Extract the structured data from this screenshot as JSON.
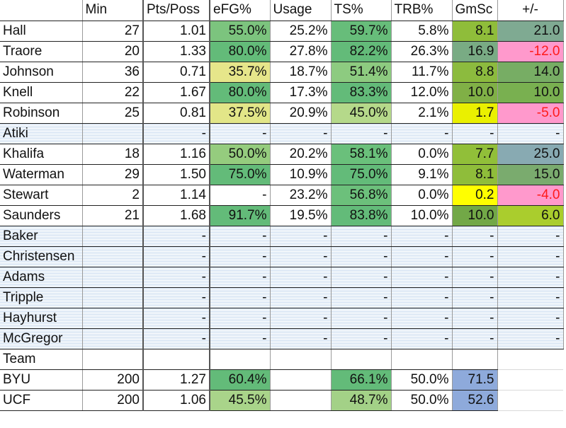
{
  "columns": [
    "",
    "Min",
    "Pts/Poss",
    "eFG%",
    "Usage",
    "TS%",
    "TRB%",
    "GmSc",
    "+/-"
  ],
  "players": [
    {
      "name": "Hall",
      "min": "27",
      "pts_poss": "1.01",
      "efg": "55.0%",
      "usage": "25.2%",
      "ts": "59.7%",
      "trb": "5.8%",
      "gmsc": "8.1",
      "pm": "21.0",
      "colors": {
        "efg": "#7cc47e",
        "ts": "#67bd7a",
        "gmsc": "#8fbd3a",
        "pm": "#7faa92"
      }
    },
    {
      "name": "Traore",
      "min": "20",
      "pts_poss": "1.33",
      "efg": "80.0%",
      "usage": "27.8%",
      "ts": "82.2%",
      "trb": "26.3%",
      "gmsc": "16.9",
      "pm": "-12.0",
      "colors": {
        "efg": "#63bb79",
        "ts": "#63bb79",
        "gmsc": "#79ab84",
        "pm": "#ff99cc"
      }
    },
    {
      "name": "Johnson",
      "min": "36",
      "pts_poss": "0.71",
      "efg": "35.7%",
      "usage": "18.7%",
      "ts": "51.4%",
      "trb": "11.7%",
      "gmsc": "8.8",
      "pm": "14.0",
      "colors": {
        "efg": "#e6e68a",
        "ts": "#8dcb80",
        "gmsc": "#8cbb3e",
        "pm": "#77ad64"
      }
    },
    {
      "name": "Knell",
      "min": "22",
      "pts_poss": "1.67",
      "efg": "80.0%",
      "usage": "17.3%",
      "ts": "83.3%",
      "trb": "12.0%",
      "gmsc": "10.0",
      "pm": "10.0",
      "colors": {
        "efg": "#63bb79",
        "ts": "#63bb79",
        "gmsc": "#80b046",
        "pm": "#79b050"
      }
    },
    {
      "name": "Robinson",
      "min": "25",
      "pts_poss": "0.81",
      "efg": "37.5%",
      "usage": "20.9%",
      "ts": "45.0%",
      "trb": "2.1%",
      "gmsc": "1.7",
      "pm": "-5.0",
      "colors": {
        "efg": "#e2e688",
        "ts": "#b5d98a",
        "gmsc": "#eaf000",
        "pm": "#ff99cc"
      }
    },
    {
      "name": "Atiki",
      "min": "",
      "pts_poss": "-",
      "efg": "-",
      "usage": "-",
      "ts": "-",
      "trb": "-",
      "gmsc": "-",
      "pm": "-",
      "striped": true
    },
    {
      "name": "Khalifa",
      "min": "18",
      "pts_poss": "1.16",
      "efg": "50.0%",
      "usage": "20.2%",
      "ts": "58.1%",
      "trb": "0.0%",
      "gmsc": "7.7",
      "pm": "25.0",
      "colors": {
        "efg": "#95cc7e",
        "ts": "#6ac07b",
        "gmsc": "#91bf39",
        "pm": "#88aab2"
      }
    },
    {
      "name": "Waterman",
      "min": "29",
      "pts_poss": "1.50",
      "efg": "75.0%",
      "usage": "10.9%",
      "ts": "75.0%",
      "trb": "9.1%",
      "gmsc": "8.1",
      "pm": "15.0",
      "colors": {
        "efg": "#63bb79",
        "ts": "#63bb79",
        "gmsc": "#8fbd3a",
        "pm": "#7aab6e"
      }
    },
    {
      "name": "Stewart",
      "min": "2",
      "pts_poss": "1.14",
      "efg": "-",
      "usage": "23.2%",
      "ts": "56.8%",
      "trb": "0.0%",
      "gmsc": "0.2",
      "pm": "-4.0",
      "colors": {
        "efg": "#ffffff",
        "ts": "#6cc07b",
        "gmsc": "#ffff00",
        "pm": "#ff99cc"
      }
    },
    {
      "name": "Saunders",
      "min": "21",
      "pts_poss": "1.68",
      "efg": "91.7%",
      "usage": "19.5%",
      "ts": "83.8%",
      "trb": "10.0%",
      "gmsc": "10.0",
      "pm": "6.0",
      "colors": {
        "efg": "#63bb79",
        "ts": "#63bb79",
        "gmsc": "#72a847",
        "pm": "#aacd2d"
      }
    },
    {
      "name": "Baker",
      "min": "",
      "pts_poss": "-",
      "efg": "-",
      "usage": "-",
      "ts": "-",
      "trb": "-",
      "gmsc": "-",
      "pm": "-",
      "striped": true
    },
    {
      "name": "Christensen",
      "min": "",
      "pts_poss": "-",
      "efg": "-",
      "usage": "-",
      "ts": "-",
      "trb": "-",
      "gmsc": "-",
      "pm": "-",
      "striped": true
    },
    {
      "name": "Adams",
      "min": "",
      "pts_poss": "-",
      "efg": "-",
      "usage": "-",
      "ts": "-",
      "trb": "-",
      "gmsc": "-",
      "pm": "-",
      "striped": true
    },
    {
      "name": "Tripple",
      "min": "",
      "pts_poss": "-",
      "efg": "-",
      "usage": "-",
      "ts": "-",
      "trb": "-",
      "gmsc": "-",
      "pm": "-",
      "striped": true
    },
    {
      "name": "Hayhurst",
      "min": "",
      "pts_poss": "-",
      "efg": "-",
      "usage": "-",
      "ts": "-",
      "trb": "-",
      "gmsc": "-",
      "pm": "-",
      "striped": true
    },
    {
      "name": "McGregor",
      "min": "",
      "pts_poss": "-",
      "efg": "-",
      "usage": "-",
      "ts": "-",
      "trb": "-",
      "gmsc": "-",
      "pm": "-",
      "striped": true
    }
  ],
  "team_label": "Team",
  "teams": [
    {
      "name": "BYU",
      "min": "200",
      "pts_poss": "1.27",
      "efg": "60.4%",
      "usage": "",
      "ts": "66.1%",
      "trb": "50.0%",
      "gmsc": "71.5",
      "colors": {
        "efg": "#63bb79",
        "ts": "#63bb79",
        "gmsc": "#8eaadb"
      }
    },
    {
      "name": "UCF",
      "min": "200",
      "pts_poss": "1.06",
      "efg": "45.5%",
      "usage": "",
      "ts": "48.7%",
      "trb": "50.0%",
      "gmsc": "52.6",
      "colors": {
        "efg": "#a9d48a",
        "ts": "#a3d187",
        "gmsc": "#8eaadb"
      }
    }
  ],
  "colors": {
    "negative_text": "#ff1a1a",
    "stripe_light": "#f4f8fc",
    "stripe_dark": "#dbe7f5"
  }
}
